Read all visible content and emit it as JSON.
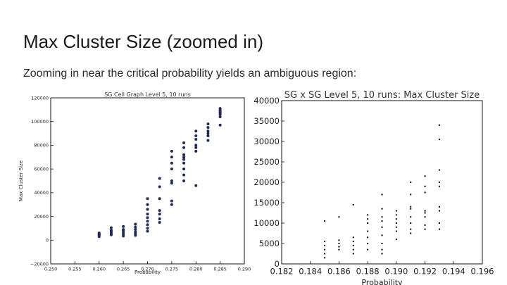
{
  "slide": {
    "title": "Max Cluster Size (zoomed in)",
    "subtitle": "Zooming in near the critical probability yields an ambiguous region:"
  },
  "chart_data": [
    {
      "type": "scatter",
      "title": "SG Cell Graph Level 5, 10 runs",
      "xlabel": "Probability",
      "ylabel": "Max Cluster Size",
      "xlim": [
        0.25,
        0.29
      ],
      "ylim": [
        -20000,
        120000
      ],
      "xticks": [
        "0.250",
        "0.255",
        "0.260",
        "0.265",
        "0.270",
        "0.275",
        "0.280",
        "0.285",
        "0.290"
      ],
      "yticks": [
        "−20000",
        "0",
        "20000",
        "40000",
        "60000",
        "80000",
        "100000",
        "120000"
      ],
      "grid": false,
      "marker_color": "#1f2a5a",
      "series": [
        {
          "points": [
            [
              0.26,
              3000
            ],
            [
              0.26,
              4000
            ],
            [
              0.26,
              4500
            ],
            [
              0.26,
              5000
            ],
            [
              0.26,
              5500
            ],
            [
              0.26,
              6000
            ],
            [
              0.2625,
              4500
            ],
            [
              0.2625,
              5500
            ],
            [
              0.2625,
              6500
            ],
            [
              0.2625,
              7500
            ],
            [
              0.2625,
              8500
            ],
            [
              0.2625,
              10500
            ],
            [
              0.265,
              3500
            ],
            [
              0.265,
              5000
            ],
            [
              0.265,
              6500
            ],
            [
              0.265,
              8000
            ],
            [
              0.265,
              9000
            ],
            [
              0.265,
              11500
            ],
            [
              0.2675,
              4000
            ],
            [
              0.2675,
              5500
            ],
            [
              0.2675,
              7000
            ],
            [
              0.2675,
              9000
            ],
            [
              0.2675,
              11000
            ],
            [
              0.2675,
              13500
            ],
            [
              0.27,
              7500
            ],
            [
              0.27,
              10000
            ],
            [
              0.27,
              13000
            ],
            [
              0.27,
              16000
            ],
            [
              0.27,
              19000
            ],
            [
              0.27,
              22000
            ],
            [
              0.27,
              26000
            ],
            [
              0.27,
              30000
            ],
            [
              0.27,
              35000
            ],
            [
              0.2725,
              15000
            ],
            [
              0.2725,
              18000
            ],
            [
              0.2725,
              22000
            ],
            [
              0.2725,
              25000
            ],
            [
              0.2725,
              35000
            ],
            [
              0.2725,
              45000
            ],
            [
              0.2725,
              52000
            ],
            [
              0.275,
              30000
            ],
            [
              0.275,
              33000
            ],
            [
              0.275,
              48000
            ],
            [
              0.275,
              50000
            ],
            [
              0.275,
              60000
            ],
            [
              0.275,
              65000
            ],
            [
              0.275,
              70000
            ],
            [
              0.275,
              75000
            ],
            [
              0.2775,
              50000
            ],
            [
              0.2775,
              55000
            ],
            [
              0.2775,
              60000
            ],
            [
              0.2775,
              65000
            ],
            [
              0.2775,
              68000
            ],
            [
              0.2775,
              70000
            ],
            [
              0.2775,
              72000
            ],
            [
              0.2775,
              78000
            ],
            [
              0.2775,
              82000
            ],
            [
              0.28,
              46000
            ],
            [
              0.28,
              75000
            ],
            [
              0.28,
              78000
            ],
            [
              0.28,
              80000
            ],
            [
              0.28,
              85000
            ],
            [
              0.28,
              88000
            ],
            [
              0.28,
              92000
            ],
            [
              0.2825,
              84000
            ],
            [
              0.2825,
              88000
            ],
            [
              0.2825,
              90000
            ],
            [
              0.2825,
              92000
            ],
            [
              0.2825,
              95000
            ],
            [
              0.2825,
              98000
            ],
            [
              0.285,
              97000
            ],
            [
              0.285,
              104000
            ],
            [
              0.285,
              106000
            ],
            [
              0.285,
              107000
            ],
            [
              0.285,
              108000
            ],
            [
              0.285,
              109000
            ],
            [
              0.285,
              110000
            ],
            [
              0.285,
              111000
            ]
          ]
        }
      ]
    },
    {
      "type": "scatter",
      "title": "SG x SG Level 5, 10 runs: Max Cluster Size",
      "xlabel": "Probability",
      "ylabel": "",
      "xlim": [
        0.182,
        0.196
      ],
      "ylim": [
        0,
        40000
      ],
      "xticks": [
        "0.182",
        "0.184",
        "0.186",
        "0.188",
        "0.190",
        "0.192",
        "0.194",
        "0.196"
      ],
      "yticks": [
        "0",
        "5000",
        "10000",
        "15000",
        "20000",
        "25000",
        "30000",
        "35000",
        "40000"
      ],
      "grid": false,
      "marker_color": "#000000",
      "series": [
        {
          "points": [
            [
              0.185,
              1500
            ],
            [
              0.185,
              2500
            ],
            [
              0.185,
              3500
            ],
            [
              0.185,
              4500
            ],
            [
              0.185,
              5500
            ],
            [
              0.185,
              10500
            ],
            [
              0.186,
              3500
            ],
            [
              0.186,
              4200
            ],
            [
              0.186,
              5000
            ],
            [
              0.186,
              5800
            ],
            [
              0.186,
              11500
            ],
            [
              0.187,
              2500
            ],
            [
              0.187,
              3500
            ],
            [
              0.187,
              4500
            ],
            [
              0.187,
              5500
            ],
            [
              0.187,
              6500
            ],
            [
              0.187,
              14500
            ],
            [
              0.188,
              3500
            ],
            [
              0.188,
              5000
            ],
            [
              0.188,
              6500
            ],
            [
              0.188,
              8000
            ],
            [
              0.188,
              10000
            ],
            [
              0.188,
              11000
            ],
            [
              0.188,
              12000
            ],
            [
              0.189,
              2500
            ],
            [
              0.189,
              3500
            ],
            [
              0.189,
              5000
            ],
            [
              0.189,
              7000
            ],
            [
              0.189,
              9000
            ],
            [
              0.189,
              10500
            ],
            [
              0.189,
              11500
            ],
            [
              0.189,
              13500
            ],
            [
              0.189,
              17000
            ],
            [
              0.19,
              6000
            ],
            [
              0.19,
              8000
            ],
            [
              0.19,
              9000
            ],
            [
              0.19,
              10000
            ],
            [
              0.19,
              11000
            ],
            [
              0.19,
              12000
            ],
            [
              0.19,
              13000
            ],
            [
              0.191,
              7500
            ],
            [
              0.191,
              8500
            ],
            [
              0.191,
              10000
            ],
            [
              0.191,
              11500
            ],
            [
              0.191,
              13500
            ],
            [
              0.191,
              14000
            ],
            [
              0.191,
              17000
            ],
            [
              0.191,
              20000
            ],
            [
              0.192,
              8500
            ],
            [
              0.192,
              9500
            ],
            [
              0.192,
              11500
            ],
            [
              0.192,
              12500
            ],
            [
              0.192,
              13000
            ],
            [
              0.192,
              17500
            ],
            [
              0.192,
              19000
            ],
            [
              0.192,
              21500
            ],
            [
              0.193,
              8500
            ],
            [
              0.193,
              10000
            ],
            [
              0.193,
              13000
            ],
            [
              0.193,
              14000
            ],
            [
              0.193,
              19000
            ],
            [
              0.193,
              20000
            ],
            [
              0.193,
              23000
            ],
            [
              0.193,
              30500
            ],
            [
              0.193,
              34000
            ]
          ]
        }
      ]
    }
  ]
}
